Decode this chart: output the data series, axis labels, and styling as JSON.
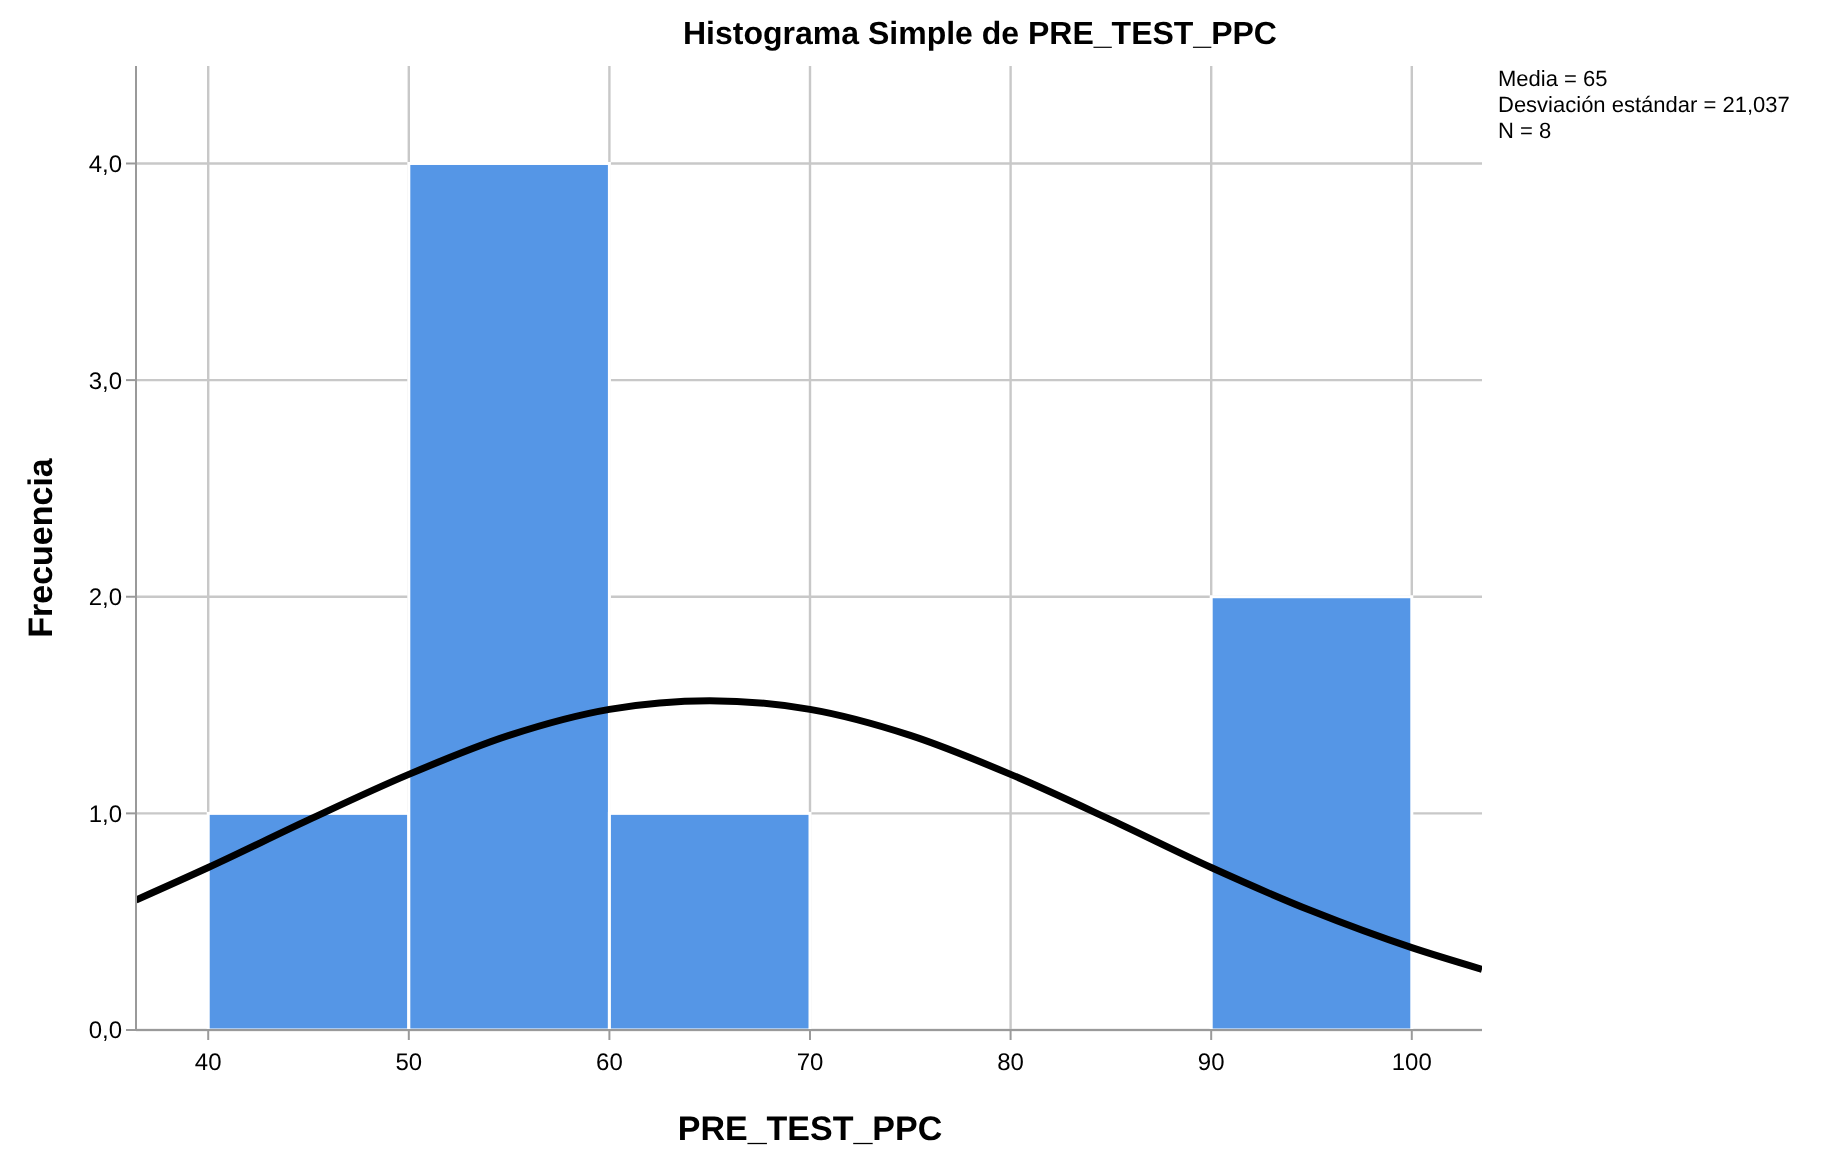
{
  "chart_data": {
    "type": "histogram",
    "title": "Histograma Simple de PRE_TEST_PPC",
    "xlabel": "PRE_TEST_PPC",
    "ylabel": "Frecuencia",
    "annotations": [
      "Media = 65",
      "Desviación estándar = 21,037",
      "N = 8"
    ],
    "bins": [
      40,
      50,
      60,
      70,
      80,
      90,
      100
    ],
    "values": [
      1,
      4,
      1,
      0,
      0,
      2
    ],
    "color": "#5596e6",
    "series": [
      {
        "type": "line",
        "color": "#000000",
        "x": [
          36.4,
          40,
          45,
          50,
          55,
          60,
          65,
          70,
          75,
          80,
          85,
          90,
          95,
          100,
          103.5
        ],
        "values": [
          0.6,
          0.75,
          0.97,
          1.18,
          1.36,
          1.48,
          1.52,
          1.48,
          1.36,
          1.18,
          0.97,
          0.75,
          0.55,
          0.38,
          0.28
        ]
      }
    ],
    "xlim": [
      36.4,
      103.5
    ],
    "xticks": [
      40,
      50,
      60,
      70,
      80,
      90,
      100
    ],
    "ylim": [
      0,
      4.45
    ],
    "yticks": [
      {
        "value": 0,
        "label": "0,0"
      },
      {
        "value": 1,
        "label": "1,0"
      },
      {
        "value": 2,
        "label": "2,0"
      },
      {
        "value": 3,
        "label": "3,0"
      },
      {
        "value": 4,
        "label": "4,0"
      }
    ],
    "grid": true
  }
}
